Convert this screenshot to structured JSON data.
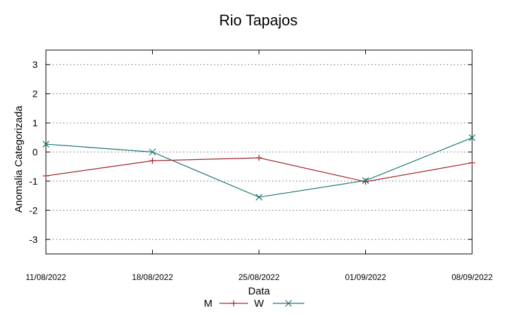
{
  "chart_data": {
    "type": "line",
    "title": "Rio Tapajos",
    "xlabel": "Data",
    "ylabel": "Anomalia Categorizada",
    "categories": [
      "11/08/2022",
      "18/08/2022",
      "25/08/2022",
      "01/09/2022",
      "08/09/2022"
    ],
    "ylim": [
      -3.5,
      3.5
    ],
    "yticks": [
      3,
      2,
      1,
      0,
      -1,
      -2,
      -3
    ],
    "ytick_labels": [
      "3",
      "2",
      "1",
      "0",
      "-1",
      "-2",
      "-3"
    ],
    "grid": "horizontal dotted",
    "legend_position": "bottom",
    "series": [
      {
        "name": "M",
        "color": "#a0202a",
        "marker": "plus",
        "values": [
          -0.82,
          -0.3,
          -0.2,
          -1.02,
          -0.37
        ]
      },
      {
        "name": "W",
        "color": "#1b7074",
        "marker": "x",
        "values": [
          0.27,
          0.0,
          -1.55,
          -0.98,
          0.49
        ]
      }
    ]
  }
}
